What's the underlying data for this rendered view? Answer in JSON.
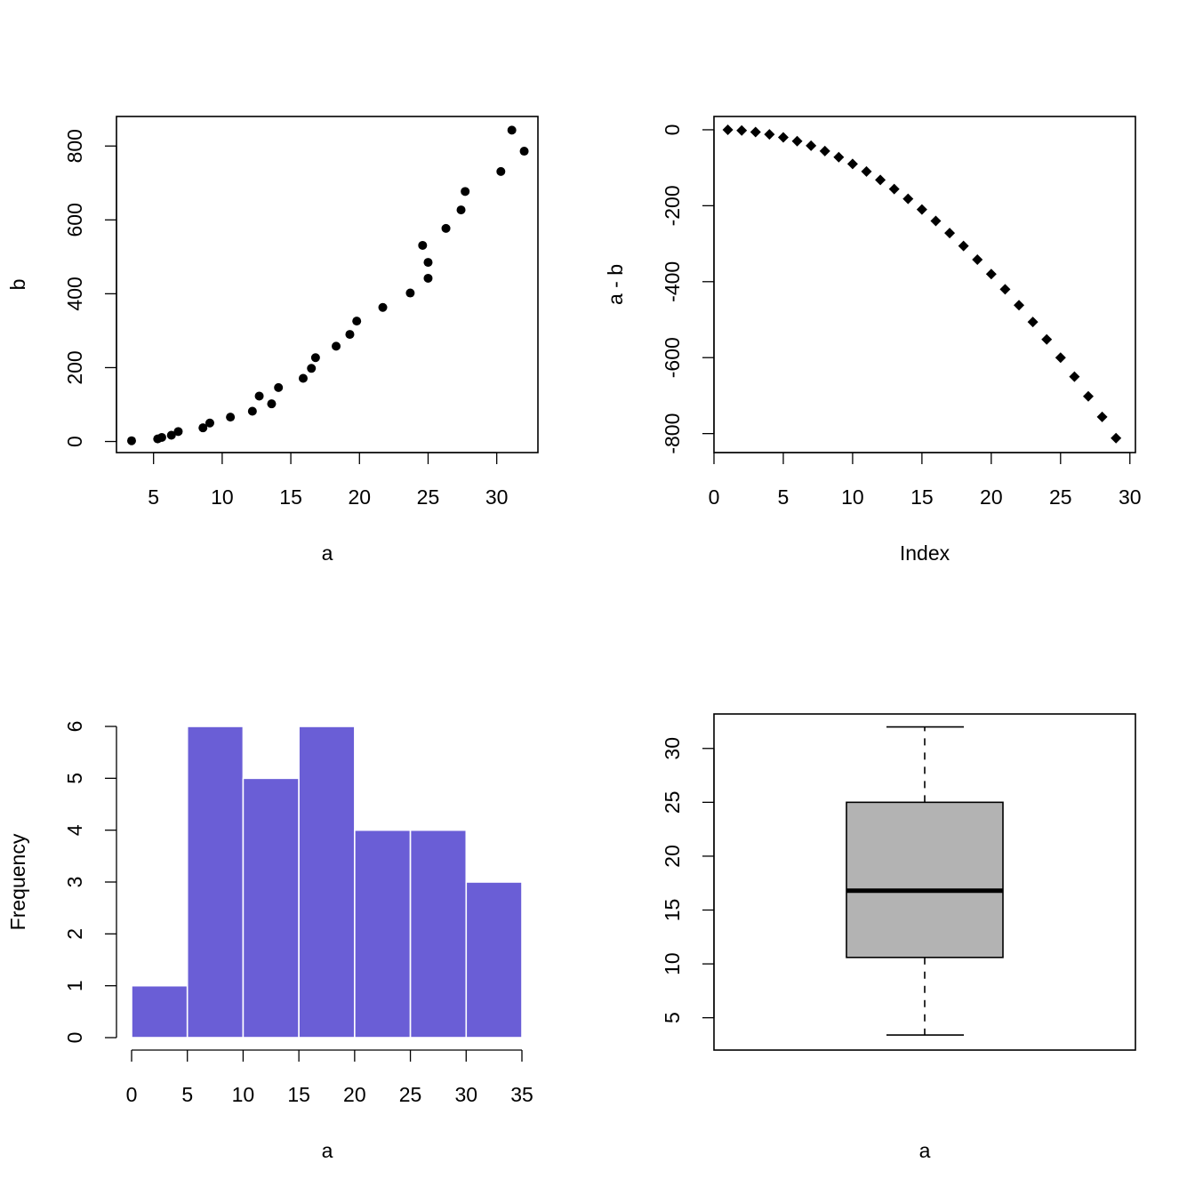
{
  "colors": {
    "points": "#000000",
    "hist_fill": "#6A5ED6",
    "hist_border": "#ffffff",
    "box_fill": "#B3B3B3",
    "frame": "#000000"
  },
  "chart_data": [
    {
      "type": "scatter",
      "xlabel": "a",
      "ylabel": "b",
      "xlim": [
        2.3,
        33.0
      ],
      "ylim": [
        -30,
        880
      ],
      "xticks": [
        "5",
        "10",
        "15",
        "20",
        "25",
        "30"
      ],
      "yticks": [
        "0",
        "200",
        "400",
        "600",
        "800"
      ],
      "marker": "circle",
      "x": [
        3.4,
        5.3,
        5.6,
        6.3,
        6.8,
        8.6,
        9.1,
        10.6,
        12.2,
        12.7,
        13.6,
        14.1,
        15.9,
        16.5,
        16.8,
        18.3,
        19.3,
        19.8,
        21.7,
        23.7,
        24.6,
        25.0,
        25.0,
        26.3,
        27.4,
        27.7,
        30.3,
        31.1,
        32.0
      ],
      "y": [
        2,
        7,
        11,
        17,
        27,
        37,
        50,
        66,
        82,
        123,
        102,
        146,
        171,
        198,
        227,
        258,
        290,
        326,
        363,
        402,
        531,
        485,
        442,
        577,
        627,
        677,
        731,
        843,
        786
      ]
    },
    {
      "type": "scatter",
      "xlabel": "Index",
      "ylabel": "a - b",
      "xlim": [
        0,
        30.4
      ],
      "ylim": [
        -850,
        35
      ],
      "xticks": [
        "0",
        "5",
        "10",
        "15",
        "20",
        "25",
        "30"
      ],
      "yticks": [
        "0",
        "-200",
        "-400",
        "-600",
        "-800"
      ],
      "marker": "diamond",
      "x": [
        1,
        2,
        3,
        4,
        5,
        6,
        7,
        8,
        9,
        10,
        11,
        12,
        13,
        14,
        15,
        16,
        17,
        18,
        19,
        20,
        21,
        22,
        23,
        24,
        25,
        26,
        27,
        28,
        29
      ],
      "y": [
        0,
        -2,
        -6,
        -12,
        -20,
        -30,
        -42,
        -56,
        -72,
        -90,
        -110,
        -132,
        -156,
        -182,
        -210,
        -240,
        -272,
        -306,
        -342,
        -380,
        -420,
        -462,
        -506,
        -552,
        -600,
        -650,
        -702,
        -756,
        -812
      ]
    },
    {
      "type": "bar",
      "xlabel": "a",
      "ylabel": "Frequency",
      "xlim": [
        0,
        35
      ],
      "ylim": [
        0,
        6
      ],
      "xticks": [
        "0",
        "5",
        "10",
        "15",
        "20",
        "25",
        "30",
        "35"
      ],
      "yticks": [
        "0",
        "1",
        "2",
        "3",
        "4",
        "5",
        "6"
      ],
      "breaks": [
        0,
        5,
        10,
        15,
        20,
        25,
        30,
        35
      ],
      "values": [
        1,
        6,
        5,
        6,
        4,
        4,
        3
      ]
    },
    {
      "type": "box",
      "xlabel": "a",
      "ylim": [
        2.0,
        33.2
      ],
      "yticks": [
        "5",
        "10",
        "15",
        "20",
        "25",
        "30"
      ],
      "min": 3.4,
      "q1": 10.6,
      "median": 16.8,
      "q3": 25.0,
      "max": 32.0
    }
  ]
}
